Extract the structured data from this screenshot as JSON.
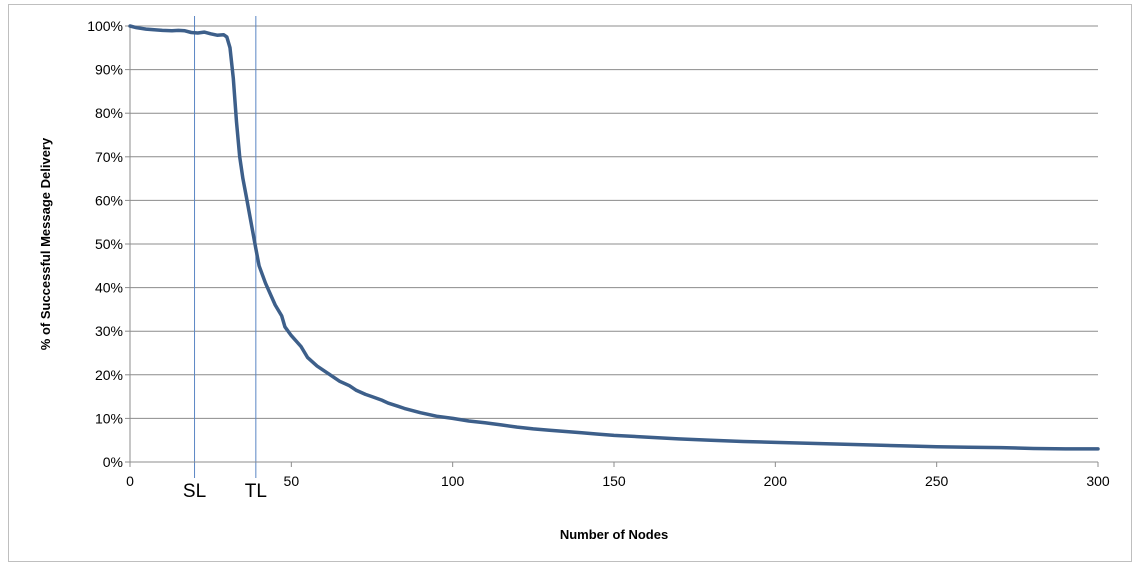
{
  "chart_data": {
    "type": "line",
    "title": "",
    "xlabel": "Number of Nodes",
    "ylabel": "% of Successful Message Delivery",
    "xlim": [
      0,
      300
    ],
    "ylim": [
      0,
      100
    ],
    "x_ticks": [
      0,
      50,
      100,
      150,
      200,
      250,
      300
    ],
    "y_ticks": [
      0,
      10,
      20,
      30,
      40,
      50,
      60,
      70,
      80,
      90,
      100
    ],
    "y_tick_format": "percent",
    "grid": "horizontal",
    "legend": "none",
    "line_color": "#3d5f8a",
    "marker_color": "#5b86c4",
    "vertical_markers": [
      {
        "label": "SL",
        "x": 20
      },
      {
        "label": "TL",
        "x": 39
      }
    ],
    "series": [
      {
        "x": [
          0,
          2,
          5,
          8,
          10,
          13,
          15,
          17,
          19,
          21,
          23,
          25,
          27,
          29,
          30,
          31,
          32,
          33,
          34,
          35,
          36,
          37,
          38,
          39,
          40,
          42,
          45,
          47,
          48,
          50,
          53,
          55,
          58,
          60,
          62,
          65,
          68,
          70,
          73,
          75,
          78,
          80,
          83,
          85,
          90,
          95,
          100,
          105,
          110,
          115,
          120,
          125,
          130,
          135,
          140,
          145,
          150,
          160,
          170,
          180,
          190,
          200,
          210,
          220,
          230,
          240,
          250,
          260,
          270,
          280,
          290,
          300
        ],
        "values": [
          100,
          99.6,
          99.3,
          99.1,
          99,
          98.9,
          99,
          98.9,
          98.5,
          98.4,
          98.6,
          98.2,
          97.9,
          98,
          97.5,
          95,
          88,
          78,
          70,
          65,
          61,
          57,
          53,
          49,
          45,
          41,
          36,
          33.5,
          31,
          29,
          26.5,
          24,
          22,
          21,
          20,
          18.5,
          17.5,
          16.5,
          15.5,
          15,
          14.2,
          13.5,
          12.8,
          12.3,
          11.3,
          10.5,
          10,
          9.4,
          9,
          8.5,
          8,
          7.6,
          7.3,
          7,
          6.7,
          6.4,
          6.1,
          5.7,
          5.3,
          5,
          4.7,
          4.5,
          4.3,
          4.1,
          3.9,
          3.7,
          3.5,
          3.4,
          3.3,
          3.1,
          3,
          3
        ]
      }
    ]
  }
}
